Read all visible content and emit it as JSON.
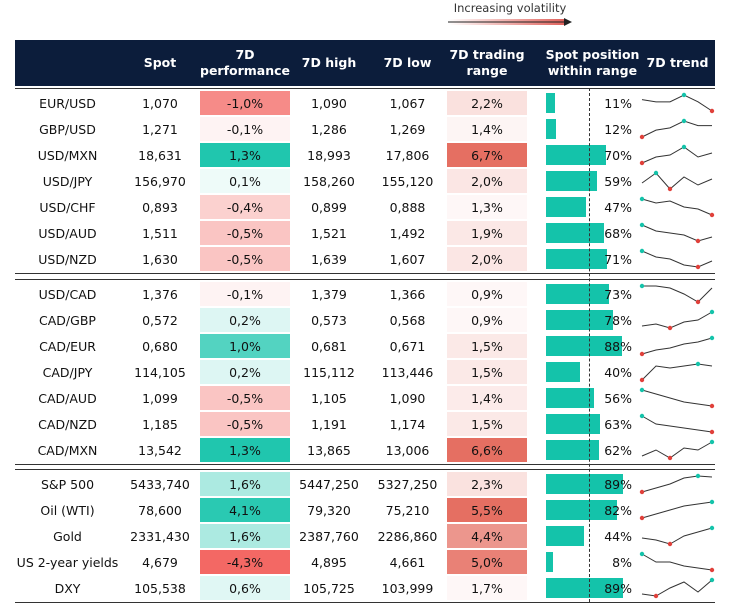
{
  "legend": "Increasing volatility",
  "header": [
    "Spot",
    "7D performance",
    "7D high",
    "7D low",
    "7D trading range",
    "Spot position within range",
    "7D trend"
  ],
  "groups": [
    {
      "rows": [
        {
          "name": "EUR/USD",
          "spot": "1,070",
          "performance": {
            "value": -1.0,
            "label": "-1,0%"
          },
          "high": "1,090",
          "low": "1,067",
          "range": {
            "value": 2.2,
            "label": "2,2%"
          },
          "position": {
            "value": 11,
            "label": "11%"
          },
          "trend": [
            7,
            6,
            6,
            9,
            6,
            2
          ]
        },
        {
          "name": "GBP/USD",
          "spot": "1,271",
          "performance": {
            "value": -0.1,
            "label": "-0,1%"
          },
          "high": "1,286",
          "low": "1,269",
          "range": {
            "value": 1.4,
            "label": "1,4%"
          },
          "position": {
            "value": 12,
            "label": "12%"
          },
          "trend": [
            2,
            5,
            6,
            9,
            7,
            7
          ]
        },
        {
          "name": "USD/MXN",
          "spot": "18,631",
          "performance": {
            "value": 1.3,
            "label": "1,3%"
          },
          "high": "18,993",
          "low": "17,806",
          "range": {
            "value": 6.7,
            "label": "6,7%"
          },
          "position": {
            "value": 70,
            "label": "70%"
          },
          "trend": [
            1,
            4,
            5,
            9,
            4,
            6
          ]
        },
        {
          "name": "USD/JPY",
          "spot": "156,970",
          "performance": {
            "value": 0.1,
            "label": "0,1%"
          },
          "high": "158,260",
          "low": "155,120",
          "range": {
            "value": 2.0,
            "label": "2,0%"
          },
          "position": {
            "value": 59,
            "label": "59%"
          },
          "trend": [
            4,
            9,
            1,
            7,
            3,
            6
          ]
        },
        {
          "name": "USD/CHF",
          "spot": "0,893",
          "performance": {
            "value": -0.4,
            "label": "-0,4%"
          },
          "high": "0,899",
          "low": "0,888",
          "range": {
            "value": 1.3,
            "label": "1,3%"
          },
          "position": {
            "value": 47,
            "label": "47%"
          },
          "trend": [
            9,
            7,
            8,
            5,
            4,
            1
          ]
        },
        {
          "name": "USD/AUD",
          "spot": "1,511",
          "performance": {
            "value": -0.5,
            "label": "-0,5%"
          },
          "high": "1,521",
          "low": "1,492",
          "range": {
            "value": 1.9,
            "label": "1,9%"
          },
          "position": {
            "value": 68,
            "label": "68%"
          },
          "trend": [
            9,
            6,
            5,
            4,
            1,
            3
          ]
        },
        {
          "name": "USD/NZD",
          "spot": "1,630",
          "performance": {
            "value": -0.5,
            "label": "-0,5%"
          },
          "high": "1,639",
          "low": "1,607",
          "range": {
            "value": 2.0,
            "label": "2,0%"
          },
          "position": {
            "value": 71,
            "label": "71%"
          },
          "trend": [
            9,
            6,
            5,
            2,
            1,
            4
          ]
        }
      ]
    },
    {
      "rows": [
        {
          "name": "USD/CAD",
          "spot": "1,376",
          "performance": {
            "value": -0.1,
            "label": "-0,1%"
          },
          "high": "1,379",
          "low": "1,366",
          "range": {
            "value": 0.9,
            "label": "0,9%"
          },
          "position": {
            "value": 73,
            "label": "73%"
          },
          "trend": [
            9,
            9,
            8,
            5,
            1,
            8
          ]
        },
        {
          "name": "CAD/GBP",
          "spot": "0,572",
          "performance": {
            "value": 0.2,
            "label": "0,2%"
          },
          "high": "0,573",
          "low": "0,568",
          "range": {
            "value": 0.9,
            "label": "0,9%"
          },
          "position": {
            "value": 78,
            "label": "78%"
          },
          "trend": [
            2,
            3,
            1,
            4,
            5,
            9
          ]
        },
        {
          "name": "CAD/EUR",
          "spot": "0,680",
          "performance": {
            "value": 1.0,
            "label": "1,0%"
          },
          "high": "0,681",
          "low": "0,671",
          "range": {
            "value": 1.5,
            "label": "1,5%"
          },
          "position": {
            "value": 88,
            "label": "88%"
          },
          "trend": [
            1,
            3,
            4,
            6,
            7,
            9
          ]
        },
        {
          "name": "CAD/JPY",
          "spot": "114,105",
          "performance": {
            "value": 0.2,
            "label": "0,2%"
          },
          "high": "115,112",
          "low": "113,446",
          "range": {
            "value": 1.5,
            "label": "1,5%"
          },
          "position": {
            "value": 40,
            "label": "40%"
          },
          "trend": [
            1,
            8,
            7,
            8,
            9,
            8
          ]
        },
        {
          "name": "CAD/AUD",
          "spot": "1,099",
          "performance": {
            "value": -0.5,
            "label": "-0,5%"
          },
          "high": "1,105",
          "low": "1,090",
          "range": {
            "value": 1.4,
            "label": "1,4%"
          },
          "position": {
            "value": 56,
            "label": "56%"
          },
          "trend": [
            9,
            7,
            5,
            3,
            2,
            1
          ]
        },
        {
          "name": "CAD/NZD",
          "spot": "1,185",
          "performance": {
            "value": -0.5,
            "label": "-0,5%"
          },
          "high": "1,191",
          "low": "1,174",
          "range": {
            "value": 1.5,
            "label": "1,5%"
          },
          "position": {
            "value": 63,
            "label": "63%"
          },
          "trend": [
            9,
            5,
            4,
            3,
            2,
            1
          ]
        },
        {
          "name": "CAD/MXN",
          "spot": "13,542",
          "performance": {
            "value": 1.3,
            "label": "1,3%"
          },
          "high": "13,865",
          "low": "13,006",
          "range": {
            "value": 6.6,
            "label": "6,6%"
          },
          "position": {
            "value": 62,
            "label": "62%"
          },
          "trend": [
            2,
            5,
            1,
            6,
            5,
            9
          ]
        }
      ]
    },
    {
      "rows": [
        {
          "name": "S&P 500",
          "spot": "5433,740",
          "performance": {
            "value": 1.6,
            "label": "1,6%"
          },
          "high": "5447,250",
          "low": "5327,250",
          "range": {
            "value": 2.3,
            "label": "2,3%"
          },
          "position": {
            "value": 89,
            "label": "89%"
          },
          "trend": [
            1,
            3,
            5,
            8,
            9,
            8.5
          ]
        },
        {
          "name": "Oil (WTI)",
          "spot": "78,600",
          "performance": {
            "value": 4.1,
            "label": "4,1%"
          },
          "high": "79,320",
          "low": "75,210",
          "range": {
            "value": 5.5,
            "label": "5,5%"
          },
          "position": {
            "value": 82,
            "label": "82%"
          },
          "trend": [
            1,
            3,
            5,
            7,
            8,
            9
          ]
        },
        {
          "name": "Gold",
          "spot": "2331,430",
          "performance": {
            "value": 1.6,
            "label": "1,6%"
          },
          "high": "2387,760",
          "low": "2286,860",
          "range": {
            "value": 4.4,
            "label": "4,4%"
          },
          "position": {
            "value": 44,
            "label": "44%"
          },
          "trend": [
            4,
            3,
            1,
            5,
            7,
            9
          ]
        },
        {
          "name": "US 2-year yields",
          "spot": "4,679",
          "performance": {
            "value": -4.3,
            "label": "-4,3%"
          },
          "high": "4,895",
          "low": "4,661",
          "range": {
            "value": 5.0,
            "label": "5,0%"
          },
          "position": {
            "value": 8,
            "label": "8%"
          },
          "trend": [
            9,
            5,
            5,
            3,
            2,
            1
          ]
        },
        {
          "name": "DXY",
          "spot": "105,538",
          "performance": {
            "value": 0.6,
            "label": "0,6%"
          },
          "high": "105,725",
          "low": "103,999",
          "range": {
            "value": 1.7,
            "label": "1,7%"
          },
          "position": {
            "value": 89,
            "label": "89%"
          },
          "trend": [
            2,
            1,
            5,
            8,
            3,
            9
          ]
        }
      ]
    }
  ]
}
